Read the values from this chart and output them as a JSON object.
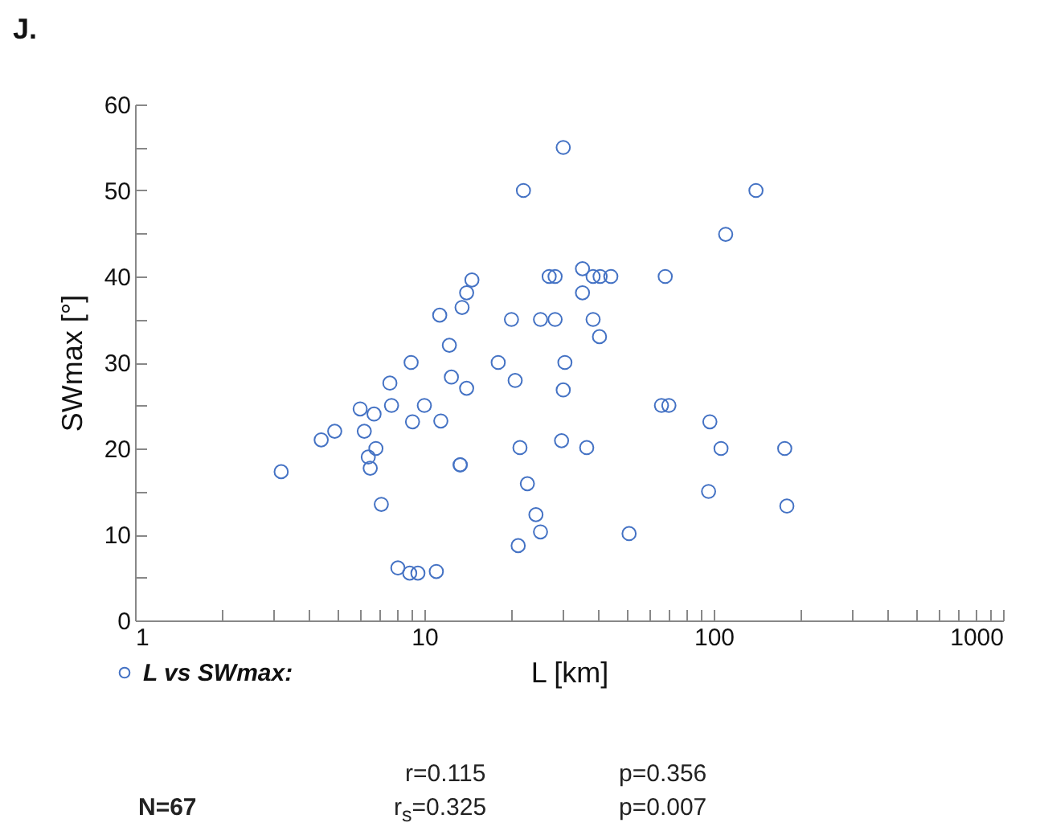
{
  "chart_data": {
    "type": "scatter",
    "title": "J.",
    "xlabel": "L [km]",
    "ylabel": "SWmax [°]",
    "log": "x",
    "marker": "circle",
    "legend": "bottom left",
    "xlim": [
      1,
      1000
    ],
    "ylim": [
      0,
      60
    ],
    "xticks": [
      1,
      {
        "value": 2,
        "label": null
      },
      {
        "value": 3,
        "label": null
      },
      {
        "value": 4,
        "label": null
      },
      {
        "value": 5,
        "label": null
      },
      {
        "value": 6,
        "label": null
      },
      {
        "value": 7,
        "label": null
      },
      {
        "value": 8,
        "label": null
      },
      {
        "value": 9,
        "label": null
      },
      10,
      {
        "value": 20,
        "label": null
      },
      {
        "value": 30,
        "label": null
      },
      {
        "value": 40,
        "label": null
      },
      {
        "value": 50,
        "label": null
      },
      {
        "value": 60,
        "label": null
      },
      {
        "value": 70,
        "label": null
      },
      {
        "value": 80,
        "label": null
      },
      {
        "value": 90,
        "label": null
      },
      100,
      {
        "value": 200,
        "label": null
      },
      {
        "value": 300,
        "label": null
      },
      {
        "value": 400,
        "label": null
      },
      {
        "value": 500,
        "label": null
      },
      {
        "value": 600,
        "label": null
      },
      {
        "value": 700,
        "label": null
      },
      {
        "value": 800,
        "label": null
      },
      {
        "value": 900,
        "label": null
      },
      1000
    ],
    "yticks": [
      0,
      {
        "value": 5,
        "label": null
      },
      10,
      {
        "value": 15,
        "label": null
      },
      20,
      {
        "value": 25,
        "label": null
      },
      30,
      {
        "value": 35,
        "label": null
      },
      40,
      {
        "value": 45,
        "label": null
      },
      50,
      {
        "value": 55,
        "label": null
      },
      60
    ],
    "series": [
      {
        "name": "L vs SWmax:",
        "color": "#4472c4",
        "x": [
          3.2,
          4.4,
          4.9,
          6.0,
          6.2,
          6.7,
          6.4,
          6.5,
          6.8,
          7.1,
          7.6,
          7.7,
          8.1,
          8.9,
          9.5,
          11.0,
          9.0,
          9.1,
          10.0,
          11.4,
          11.3,
          12.2,
          12.4,
          14.0,
          13.5,
          14.0,
          14.6,
          13.3,
          13.3,
          18.0,
          20.0,
          20.6,
          21.4,
          21.1,
          22.0,
          22.7,
          24.3,
          25.2,
          25.2,
          27.0,
          28.3,
          28.3,
          30.2,
          30.6,
          30.2,
          29.8,
          35.2,
          35.2,
          38.3,
          40.5,
          44.1,
          38.3,
          40.3,
          36.4,
          51,
          68,
          66,
          70,
          97,
          96,
          110,
          140,
          106,
          176,
          179
        ],
        "values": [
          17.3,
          21.0,
          22.0,
          24.6,
          22.0,
          24.0,
          19.0,
          17.7,
          20.0,
          13.5,
          27.6,
          25.0,
          6.1,
          5.5,
          5.5,
          5.7,
          30.0,
          23.1,
          25.0,
          23.2,
          35.5,
          32.0,
          28.3,
          27.0,
          36.4,
          38.1,
          39.6,
          18.1,
          18.1,
          30.0,
          35.0,
          27.9,
          20.1,
          8.7,
          50.0,
          15.9,
          12.3,
          10.3,
          35.0,
          40.0,
          40.0,
          35.0,
          55.0,
          30.0,
          26.8,
          20.9,
          40.9,
          38.1,
          40.0,
          40.0,
          40.0,
          35.0,
          33.0,
          20.1,
          10.1,
          40.0,
          25.0,
          25.0,
          23.1,
          15.0,
          44.9,
          50.0,
          20.0,
          20.0,
          13.3
        ]
      }
    ],
    "annotations": [
      "r=0.115",
      "p=0.356",
      "N=67",
      "r$_{s}$=0.325",
      "p=0.007"
    ]
  }
}
